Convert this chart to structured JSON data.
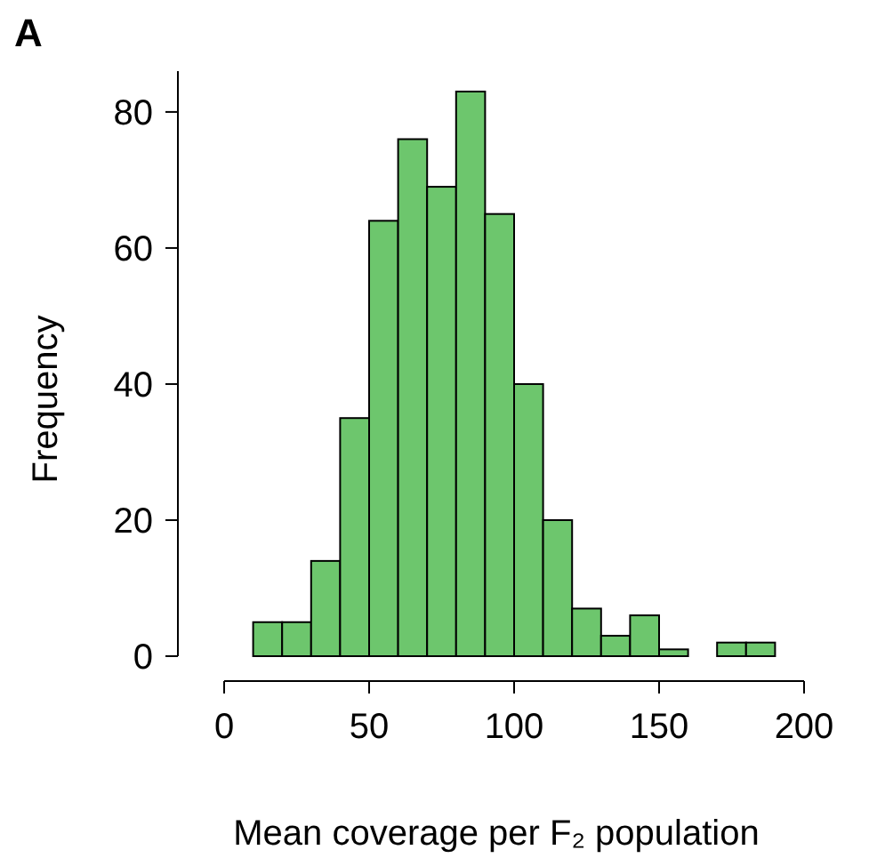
{
  "chart_data": {
    "type": "histogram",
    "title": "A",
    "xlabel": "Mean coverage per F₂ population",
    "ylabel": "Frequency",
    "bins": [
      10,
      20,
      30,
      40,
      50,
      60,
      70,
      80,
      90,
      100,
      110,
      120,
      130,
      140,
      150,
      160,
      170,
      180,
      190
    ],
    "values": [
      5,
      5,
      14,
      35,
      64,
      76,
      69,
      83,
      65,
      40,
      20,
      7,
      3,
      6,
      1,
      0,
      2,
      2
    ],
    "color": "#6dc66d",
    "xlim": [
      0,
      200
    ],
    "ylim": [
      0,
      86
    ],
    "xticks": [
      0,
      50,
      100,
      150,
      200
    ],
    "yticks": [
      0,
      20,
      40,
      60,
      80
    ],
    "grid": false
  }
}
